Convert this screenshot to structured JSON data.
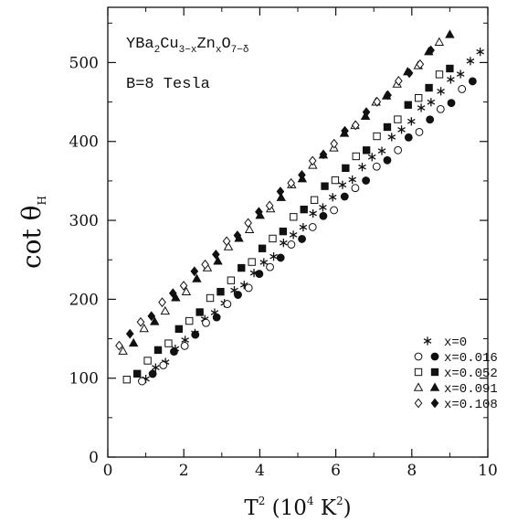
{
  "chart_data": {
    "type": "scatter",
    "title_line1": {
      "parts": [
        {
          "t": "YBa"
        },
        {
          "t": "2",
          "sub": true
        },
        {
          "t": "Cu"
        },
        {
          "t": "3−x",
          "sub": true
        },
        {
          "t": "Zn"
        },
        {
          "t": "x",
          "sub": true
        },
        {
          "t": "O"
        },
        {
          "t": "7−δ",
          "sub": true
        }
      ]
    },
    "title_line2": "B=8 Tesla",
    "ylabel": {
      "main": "cot θ",
      "sub": "H"
    },
    "xlabel": {
      "pre": "T",
      "sup": "2",
      "mid": " (10",
      "sup2": "4",
      "post": " K",
      "sup3": "2",
      "end": ")"
    },
    "xlim": [
      0,
      10
    ],
    "ylim": [
      0,
      570
    ],
    "x_ticks": [
      0,
      2,
      4,
      6,
      8,
      10
    ],
    "y_ticks": [
      0,
      100,
      200,
      300,
      400,
      500
    ],
    "legend_position": "bottom-right",
    "series": [
      {
        "name": "x=0",
        "markers": [
          "star"
        ],
        "x0": 1.0,
        "x1": 9.8,
        "n": 35,
        "a": 52,
        "b": 47
      },
      {
        "name": "x=0.016",
        "markers": [
          "circle-open",
          "circle-filled"
        ],
        "x0": 0.9,
        "x1": 9.6,
        "n": 32,
        "a": 54,
        "b": 44
      },
      {
        "name": "x=0.052",
        "markers": [
          "square-open",
          "square-filled"
        ],
        "x0": 0.5,
        "x1": 9.0,
        "n": 32,
        "a": 72,
        "b": 47
      },
      {
        "name": "x=0.091",
        "markers": [
          "triangle-open",
          "triangle-filled"
        ],
        "x0": 0.4,
        "x1": 9.0,
        "n": 32,
        "a": 115,
        "b": 47
      },
      {
        "name": "x=0.108",
        "markers": [
          "diamond-open",
          "diamond-filled"
        ],
        "x0": 0.3,
        "x1": 8.5,
        "n": 30,
        "a": 130,
        "b": 45
      }
    ]
  }
}
